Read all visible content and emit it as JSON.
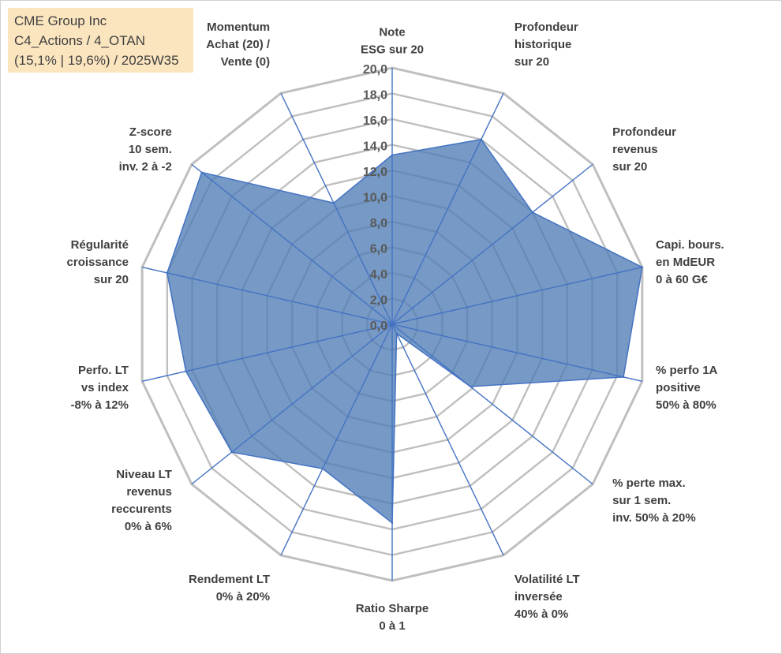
{
  "header": {
    "company": "CME Group Inc",
    "classification": "C4_Actions / 4_OTAN",
    "period": "(15,1% | 19,6%) / 2025W35"
  },
  "chart_data": {
    "type": "radar",
    "rmax": 20,
    "tick_step": 2,
    "tick_labels": [
      "0,0",
      "2,0",
      "4,0",
      "6,0",
      "8,0",
      "10,0",
      "12,0",
      "14,0",
      "16,0",
      "18,0",
      "20,0"
    ],
    "grid": true,
    "axes": [
      [
        "Note",
        "ESG sur 20"
      ],
      [
        "Profondeur",
        "historique",
        "sur 20"
      ],
      [
        "Profondeur",
        "revenus",
        "sur 20"
      ],
      [
        "Capi. bours.",
        "en MdEUR",
        "0 à 60 G€"
      ],
      [
        "% perfo 1A",
        "positive",
        "50% à 80%"
      ],
      [
        "% perte max.",
        "sur 1 sem.",
        "inv. 50% à 20%"
      ],
      [
        "Volatilité LT",
        "inversée",
        "40% à 0%"
      ],
      [
        "Ratio Sharpe",
        "0 à 1"
      ],
      [
        "Rendement LT",
        "0% à 20%"
      ],
      [
        "Niveau LT",
        "revenus",
        "reccurents",
        "0% à 6%"
      ],
      [
        "Perfo. LT",
        "vs index",
        "-8% à 12%"
      ],
      [
        "Régularité",
        "croissance",
        "sur 20"
      ],
      [
        "Z-score",
        "10 sem.",
        "inv. 2 à -2"
      ],
      [
        "Momentum",
        "Achat (20) /",
        "Vente (0)"
      ]
    ],
    "values": [
      13.2,
      16.0,
      14.0,
      20.0,
      18.5,
      7.8,
      0.8,
      15.5,
      12.5,
      16.0,
      16.5,
      18.0,
      19.0,
      10.5
    ],
    "colors": {
      "fill": "#4f7eb5",
      "fill_opacity": 0.78,
      "stroke": "#4472c4",
      "grid": "#bfbfbf",
      "outer_grid": "#bfbfbf",
      "spoke": "#4472c4"
    }
  }
}
